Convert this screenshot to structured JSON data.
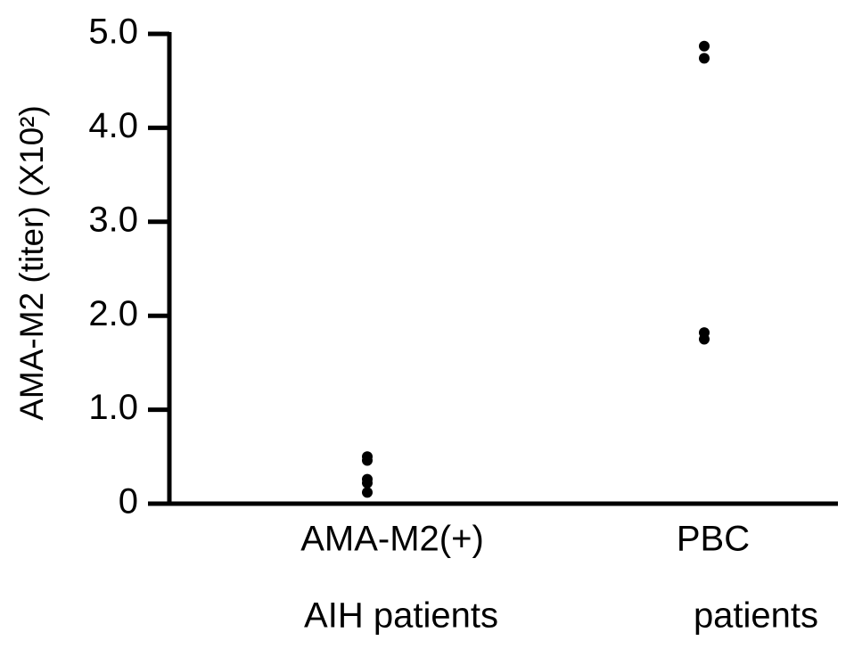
{
  "chart_data": {
    "type": "scatter",
    "y_label": "AMA-M2 (titer) (X10²)",
    "categories": [
      [
        "AMA-M2(+)",
        "AIH patients"
      ],
      [
        "PBC",
        "patients"
      ]
    ],
    "values": [
      [
        0.5,
        0.46,
        0.26,
        0.22,
        0.12
      ],
      [
        4.87,
        4.74,
        1.82,
        1.75
      ]
    ],
    "color": "#000000",
    "ylim": [
      0,
      5
    ],
    "yticks": [
      0,
      {
        "value": 1,
        "label": "1.0"
      },
      {
        "value": 2,
        "label": "2.0"
      },
      {
        "value": 3,
        "label": "3.0"
      },
      {
        "value": 4,
        "label": "4.0"
      },
      {
        "value": 5,
        "label": "5.0"
      }
    ]
  }
}
